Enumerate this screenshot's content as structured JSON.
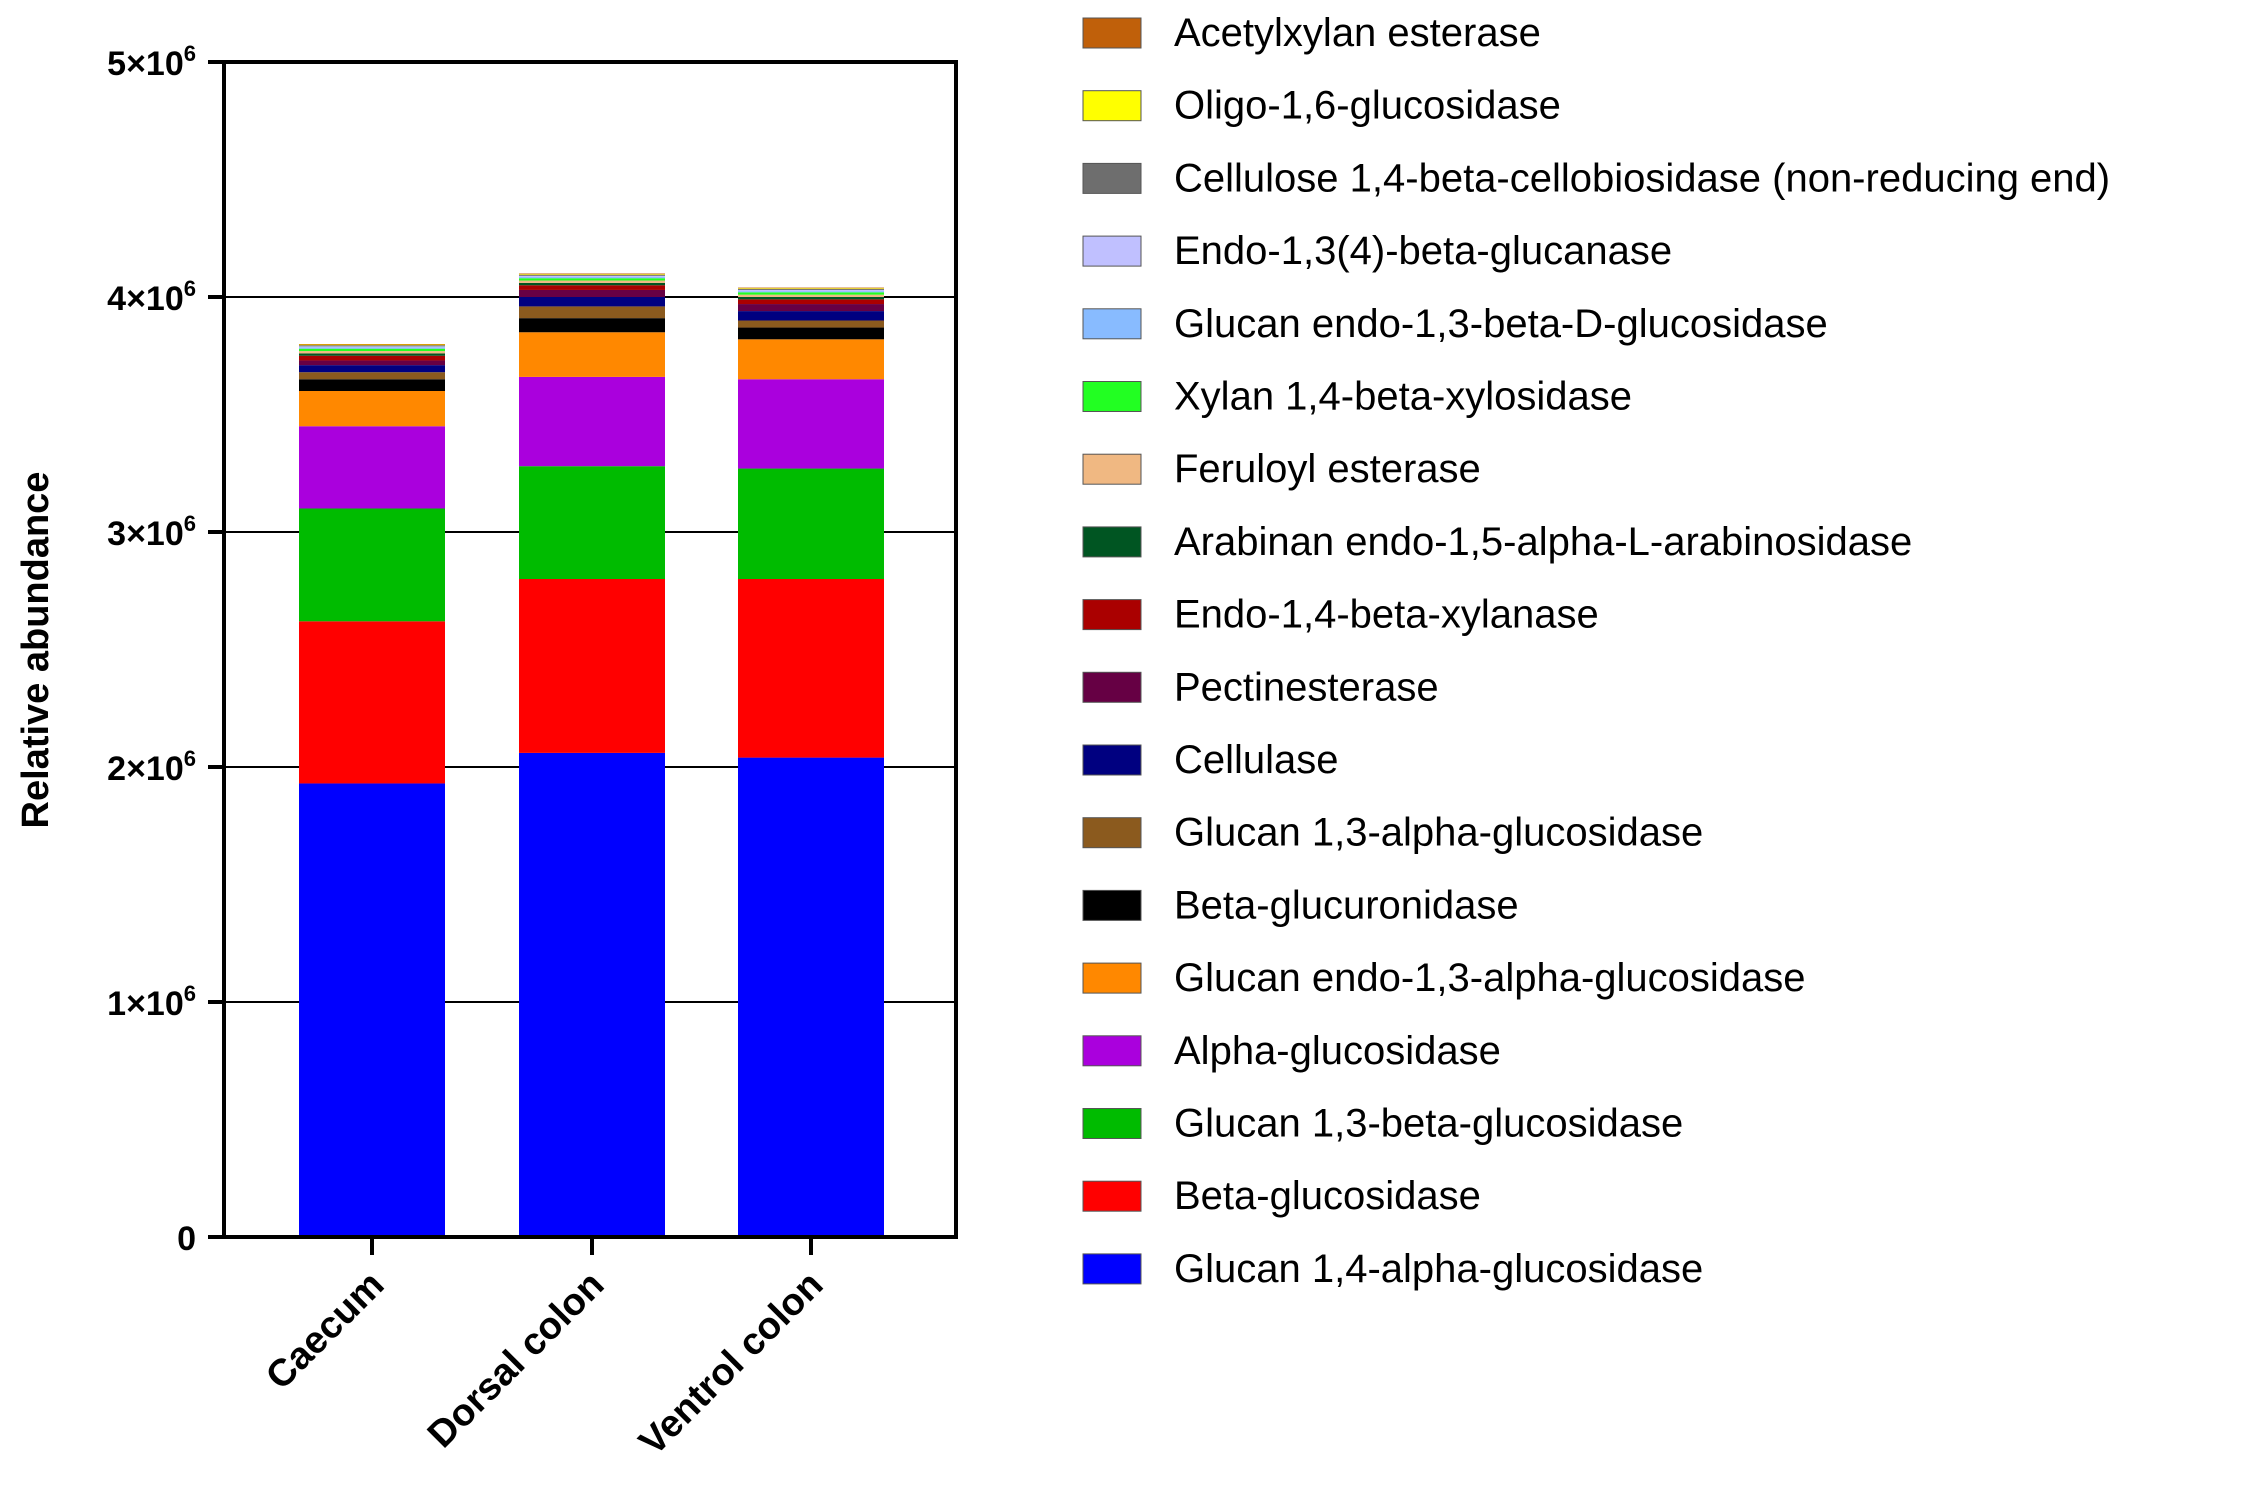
{
  "chart_data": {
    "type": "bar",
    "stacked": true,
    "categories": [
      "Caecum",
      "Dorsal colon",
      "Ventrol colon"
    ],
    "ylabel": "Relative abundance",
    "xlabel": "",
    "ylim": [
      0,
      5000000
    ],
    "yticks": [
      {
        "value": 0,
        "mant": "0",
        "sup": ""
      },
      {
        "value": 1000000,
        "mant": "1×10",
        "sup": "6"
      },
      {
        "value": 2000000,
        "mant": "2×10",
        "sup": "6"
      },
      {
        "value": 3000000,
        "mant": "3×10",
        "sup": "6"
      },
      {
        "value": 4000000,
        "mant": "4×10",
        "sup": "6"
      },
      {
        "value": 5000000,
        "mant": "5×10",
        "sup": "6"
      }
    ],
    "grid": true,
    "legend_position": "right",
    "series": [
      {
        "name": "Glucan 1,4-alpha-glucosidase",
        "color": "#0000ff",
        "values": [
          1930000,
          2060000,
          2040000
        ]
      },
      {
        "name": "Beta-glucosidase",
        "color": "#ff0000",
        "values": [
          690000,
          740000,
          760000
        ]
      },
      {
        "name": "Glucan 1,3-beta-glucosidase",
        "color": "#00bb00",
        "values": [
          480000,
          480000,
          470000
        ]
      },
      {
        "name": "Alpha-glucosidase",
        "color": "#aa00dd",
        "values": [
          350000,
          380000,
          380000
        ]
      },
      {
        "name": "Glucan endo-1,3-alpha-glucosidase",
        "color": "#ff8800",
        "values": [
          150000,
          190000,
          170000
        ]
      },
      {
        "name": "Beta-glucuronidase",
        "color": "#000000",
        "values": [
          50000,
          60000,
          50000
        ]
      },
      {
        "name": "Glucan 1,3-alpha-glucosidase",
        "color": "#8b5a1e",
        "values": [
          30000,
          50000,
          30000
        ]
      },
      {
        "name": "Cellulase",
        "color": "#000080",
        "values": [
          30000,
          40000,
          40000
        ]
      },
      {
        "name": "Pectinesterase",
        "color": "#660044",
        "values": [
          20000,
          30000,
          30000
        ]
      },
      {
        "name": "Endo-1,4-beta-xylanase",
        "color": "#aa0000",
        "values": [
          20000,
          20000,
          20000
        ]
      },
      {
        "name": "Arabinan endo-1,5-alpha-L-arabinosidase",
        "color": "#005522",
        "values": [
          10000,
          10000,
          10000
        ]
      },
      {
        "name": "Feruloyl esterase",
        "color": "#f0b882",
        "values": [
          10000,
          10000,
          10000
        ]
      },
      {
        "name": "Xylan 1,4-beta-xylosidase",
        "color": "#22ff22",
        "values": [
          10000,
          10000,
          10000
        ]
      },
      {
        "name": "Glucan endo-1,3-beta-D-glucosidase",
        "color": "#88bbff",
        "values": [
          5000,
          5000,
          5000
        ]
      },
      {
        "name": "Endo-1,3(4)-beta-glucanase",
        "color": "#c0c0ff",
        "values": [
          5000,
          5000,
          5000
        ]
      },
      {
        "name": "Cellulose 1,4-beta-cellobiosidase (non-reducing end)",
        "color": "#6e6e6e",
        "values": [
          5000,
          5000,
          5000
        ]
      },
      {
        "name": "Oligo-1,6-glucosidase",
        "color": "#ffff00",
        "values": [
          3000,
          3000,
          3000
        ]
      },
      {
        "name": "Acetylxylan esterase",
        "color": "#c0600a",
        "values": [
          2000,
          2000,
          2000
        ]
      }
    ]
  }
}
